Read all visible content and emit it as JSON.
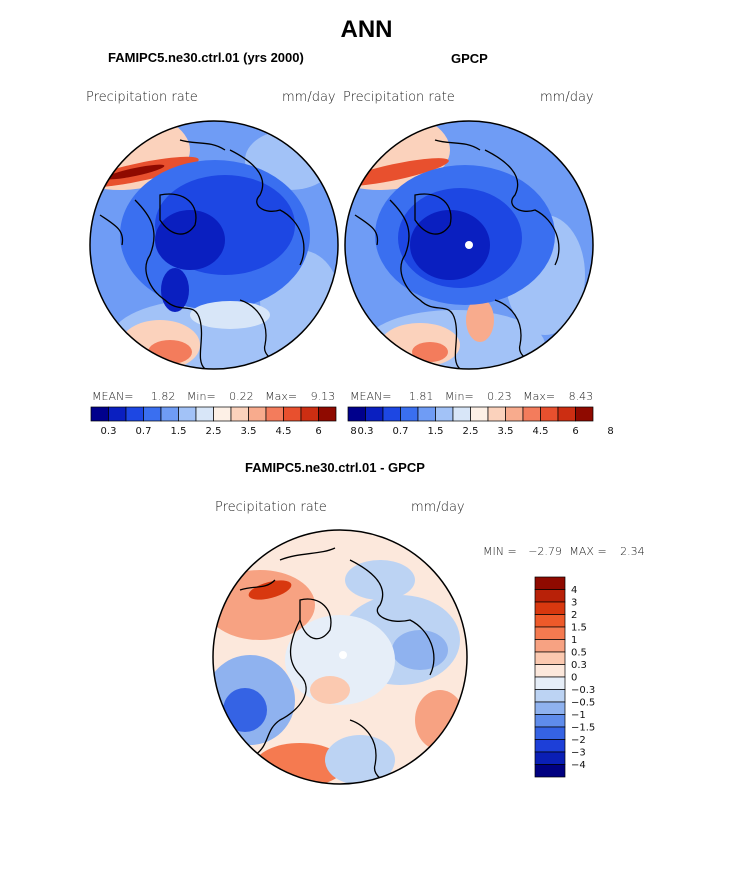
{
  "figure": {
    "title": "ANN",
    "panel_left_title": "FAMIPC5.ne30.ctrl.01 (yrs 2000)",
    "panel_right_title": "GPCP",
    "diff_title": "FAMIPC5.ne30.ctrl.01 - GPCP"
  },
  "panels": {
    "left": {
      "var_label": "Precipitation rate",
      "units": "mm/day",
      "mean_label": "MEAN=",
      "mean": "1.82",
      "min_label": "Min=",
      "min": "0.22",
      "max_label": "Max=",
      "max": "9.13"
    },
    "right": {
      "var_label": "Precipitation rate",
      "units": "mm/day",
      "mean_label": "MEAN=",
      "mean": "1.81",
      "min_label": "Min=",
      "min": "0.23",
      "max_label": "Max=",
      "max": "8.43"
    },
    "diff": {
      "var_label": "Precipitation rate",
      "units": "mm/day",
      "min_label": "MIN =",
      "min": "−2.79",
      "max_label": "MAX =",
      "max": "2.34"
    }
  },
  "colorbar_abs": {
    "colors": [
      "#00008c",
      "#0a1fc0",
      "#1d47e3",
      "#3a6ff0",
      "#6f9cf5",
      "#a2c2f7",
      "#d8e6f8",
      "#fdf0e6",
      "#fbd2bc",
      "#f8ab8d",
      "#f37c5c",
      "#e8502e",
      "#cc2e12",
      "#8f0a00"
    ],
    "labels": [
      "0.3",
      "0.7",
      "1.5",
      "2.5",
      "3.5",
      "4.5",
      "6",
      "8"
    ]
  },
  "colorbar_diff": {
    "colors": [
      "#8f0a00",
      "#b82108",
      "#d8380f",
      "#ee5a2a",
      "#f57a50",
      "#f7a282",
      "#fbc9b0",
      "#fce8dc",
      "#e6eef8",
      "#bcd3f3",
      "#8fb2ef",
      "#5f8ceb",
      "#3563e4",
      "#1d3fd8",
      "#0a1fb5",
      "#000080"
    ],
    "labels": [
      "4",
      "3",
      "2",
      "1.5",
      "1",
      "0.5",
      "0.3",
      "0",
      "−0.3",
      "−0.5",
      "−1",
      "−1.5",
      "−2",
      "−3",
      "−4"
    ]
  }
}
